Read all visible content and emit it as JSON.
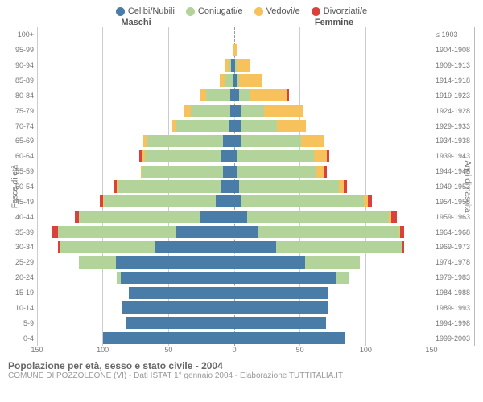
{
  "chart": {
    "type": "population-pyramid",
    "background_color": "#ffffff",
    "grid_color": "#cccccc",
    "center_line_color": "#999999",
    "label_font_size": 9,
    "legend": [
      {
        "label": "Celibi/Nubili",
        "key": "celibi",
        "color": "#4a7ca8"
      },
      {
        "label": "Coniugati/e",
        "key": "coniugati",
        "color": "#b2d399"
      },
      {
        "label": "Vedovi/e",
        "key": "vedovi",
        "color": "#f7c15b"
      },
      {
        "label": "Divorziati/e",
        "key": "divorziati",
        "color": "#d9413a"
      }
    ],
    "colors": {
      "celibi": "#4a7ca8",
      "coniugati": "#b2d399",
      "vedovi": "#f7c15b",
      "divorziati": "#d9413a"
    },
    "header_left": "Maschi",
    "header_right": "Femmine",
    "y_label_left": "Fasce di età",
    "y_label_right": "Anni di nascita",
    "x_ticks_male": [
      150,
      100,
      50,
      0
    ],
    "x_ticks_female": [
      0,
      50,
      100,
      150
    ],
    "x_max": 150,
    "rows": [
      {
        "age": "100+",
        "birth": "≤ 1903",
        "male": {
          "celibi": 0,
          "coniugati": 0,
          "vedovi": 0,
          "divorziati": 0
        },
        "female": {
          "celibi": 0,
          "coniugati": 0,
          "vedovi": 0,
          "divorziati": 0
        }
      },
      {
        "age": "95-99",
        "birth": "1904-1908",
        "male": {
          "celibi": 0,
          "coniugati": 0,
          "vedovi": 1,
          "divorziati": 0
        },
        "female": {
          "celibi": 0,
          "coniugati": 0,
          "vedovi": 2,
          "divorziati": 0
        }
      },
      {
        "age": "90-94",
        "birth": "1909-1913",
        "male": {
          "celibi": 2,
          "coniugati": 2,
          "vedovi": 3,
          "divorziati": 0
        },
        "female": {
          "celibi": 1,
          "coniugati": 1,
          "vedovi": 10,
          "divorziati": 0
        }
      },
      {
        "age": "85-89",
        "birth": "1914-1918",
        "male": {
          "celibi": 1,
          "coniugati": 6,
          "vedovi": 4,
          "divorziati": 0
        },
        "female": {
          "celibi": 2,
          "coniugati": 2,
          "vedovi": 18,
          "divorziati": 0
        }
      },
      {
        "age": "80-84",
        "birth": "1919-1923",
        "male": {
          "celibi": 3,
          "coniugati": 18,
          "vedovi": 5,
          "divorziati": 0
        },
        "female": {
          "celibi": 4,
          "coniugati": 8,
          "vedovi": 28,
          "divorziati": 2
        }
      },
      {
        "age": "75-79",
        "birth": "1924-1928",
        "male": {
          "celibi": 3,
          "coniugati": 30,
          "vedovi": 5,
          "divorziati": 0
        },
        "female": {
          "celibi": 5,
          "coniugati": 18,
          "vedovi": 30,
          "divorziati": 0
        }
      },
      {
        "age": "70-74",
        "birth": "1929-1933",
        "male": {
          "celibi": 4,
          "coniugati": 40,
          "vedovi": 3,
          "divorziati": 0
        },
        "female": {
          "celibi": 5,
          "coniugati": 28,
          "vedovi": 22,
          "divorziati": 0
        }
      },
      {
        "age": "65-69",
        "birth": "1934-1938",
        "male": {
          "celibi": 8,
          "coniugati": 58,
          "vedovi": 3,
          "divorziati": 0
        },
        "female": {
          "celibi": 5,
          "coniugati": 46,
          "vedovi": 18,
          "divorziati": 0
        }
      },
      {
        "age": "60-64",
        "birth": "1939-1943",
        "male": {
          "celibi": 10,
          "coniugati": 58,
          "vedovi": 2,
          "divorziati": 2
        },
        "female": {
          "celibi": 3,
          "coniugati": 58,
          "vedovi": 10,
          "divorziati": 2
        }
      },
      {
        "age": "55-59",
        "birth": "1944-1948",
        "male": {
          "celibi": 8,
          "coniugati": 62,
          "vedovi": 1,
          "divorziati": 0
        },
        "female": {
          "celibi": 3,
          "coniugati": 60,
          "vedovi": 6,
          "divorziati": 2
        }
      },
      {
        "age": "50-54",
        "birth": "1949-1953",
        "male": {
          "celibi": 10,
          "coniugati": 78,
          "vedovi": 1,
          "divorziati": 2
        },
        "female": {
          "celibi": 4,
          "coniugati": 76,
          "vedovi": 4,
          "divorziati": 2
        }
      },
      {
        "age": "45-49",
        "birth": "1954-1958",
        "male": {
          "celibi": 14,
          "coniugati": 85,
          "vedovi": 1,
          "divorziati": 2
        },
        "female": {
          "celibi": 5,
          "coniugati": 94,
          "vedovi": 3,
          "divorziati": 3
        }
      },
      {
        "age": "40-44",
        "birth": "1959-1963",
        "male": {
          "celibi": 26,
          "coniugati": 92,
          "vedovi": 0,
          "divorziati": 3
        },
        "female": {
          "celibi": 10,
          "coniugati": 108,
          "vedovi": 2,
          "divorziati": 4
        }
      },
      {
        "age": "35-39",
        "birth": "1964-1968",
        "male": {
          "celibi": 44,
          "coniugati": 90,
          "vedovi": 0,
          "divorziati": 5
        },
        "female": {
          "celibi": 18,
          "coniugati": 108,
          "vedovi": 1,
          "divorziati": 3
        }
      },
      {
        "age": "30-34",
        "birth": "1969-1973",
        "male": {
          "celibi": 60,
          "coniugati": 72,
          "vedovi": 0,
          "divorziati": 2
        },
        "female": {
          "celibi": 32,
          "coniugati": 96,
          "vedovi": 0,
          "divorziati": 2
        }
      },
      {
        "age": "25-29",
        "birth": "1974-1978",
        "male": {
          "celibi": 90,
          "coniugati": 28,
          "vedovi": 0,
          "divorziati": 0
        },
        "female": {
          "celibi": 54,
          "coniugati": 42,
          "vedovi": 0,
          "divorziati": 0
        }
      },
      {
        "age": "20-24",
        "birth": "1979-1983",
        "male": {
          "celibi": 86,
          "coniugati": 3,
          "vedovi": 0,
          "divorziati": 0
        },
        "female": {
          "celibi": 78,
          "coniugati": 10,
          "vedovi": 0,
          "divorziati": 0
        }
      },
      {
        "age": "15-19",
        "birth": "1984-1988",
        "male": {
          "celibi": 80,
          "coniugati": 0,
          "vedovi": 0,
          "divorziati": 0
        },
        "female": {
          "celibi": 72,
          "coniugati": 0,
          "vedovi": 0,
          "divorziati": 0
        }
      },
      {
        "age": "10-14",
        "birth": "1989-1993",
        "male": {
          "celibi": 85,
          "coniugati": 0,
          "vedovi": 0,
          "divorziati": 0
        },
        "female": {
          "celibi": 72,
          "coniugati": 0,
          "vedovi": 0,
          "divorziati": 0
        }
      },
      {
        "age": "5-9",
        "birth": "1994-1998",
        "male": {
          "celibi": 82,
          "coniugati": 0,
          "vedovi": 0,
          "divorziati": 0
        },
        "female": {
          "celibi": 70,
          "coniugati": 0,
          "vedovi": 0,
          "divorziati": 0
        }
      },
      {
        "age": "0-4",
        "birth": "1999-2003",
        "male": {
          "celibi": 100,
          "coniugati": 0,
          "vedovi": 0,
          "divorziati": 0
        },
        "female": {
          "celibi": 85,
          "coniugati": 0,
          "vedovi": 0,
          "divorziati": 0
        }
      }
    ],
    "footer_title": "Popolazione per età, sesso e stato civile - 2004",
    "footer_sub": "COMUNE DI POZZOLEONE (VI) - Dati ISTAT 1° gennaio 2004 - Elaborazione TUTTITALIA.IT"
  }
}
